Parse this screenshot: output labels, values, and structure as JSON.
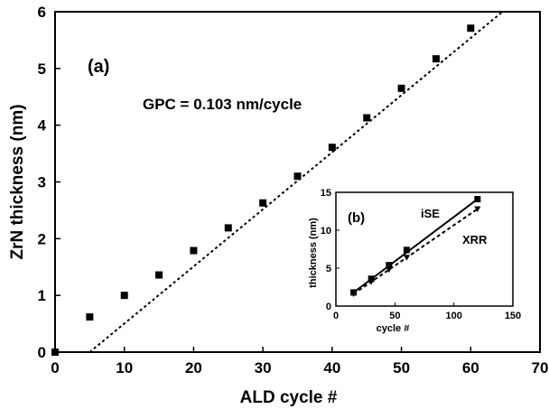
{
  "chart_data": [
    {
      "type": "scatter",
      "panel_label": "(a)",
      "xlabel": "ALD cycle #",
      "ylabel": "ZrN thickness (nm)",
      "xlim": [
        0,
        70
      ],
      "ylim": [
        0,
        6
      ],
      "xticks": [
        0,
        10,
        20,
        30,
        40,
        50,
        60,
        70
      ],
      "yticks": [
        0,
        1,
        2,
        3,
        4,
        5,
        6
      ],
      "annotation": "GPC = 0.103 nm/cycle",
      "grid": false,
      "series": [
        {
          "marker": "square",
          "x": [
            0,
            5,
            10,
            15,
            20,
            25,
            30,
            35,
            40,
            45,
            50,
            55,
            60
          ],
          "y": [
            0.0,
            0.62,
            1.0,
            1.36,
            1.79,
            2.19,
            2.63,
            3.1,
            3.61,
            4.13,
            4.65,
            5.17,
            5.71
          ]
        }
      ],
      "fit_line": {
        "style": "dotted",
        "x": [
          5,
          64.6
        ],
        "y": [
          0.0,
          6.0
        ]
      }
    },
    {
      "type": "line",
      "panel_label": "(b)",
      "xlabel": "cycle #",
      "ylabel": "thickness (nm)",
      "xlim": [
        0,
        150
      ],
      "ylim": [
        0,
        15
      ],
      "xticks": [
        0,
        50,
        100,
        150
      ],
      "yticks": [
        0,
        5,
        10,
        15
      ],
      "grid": false,
      "series": [
        {
          "name": "iSE",
          "marker": "square",
          "line": "solid",
          "x": [
            15,
            30,
            45,
            60,
            120
          ],
          "y": [
            1.8,
            3.6,
            5.4,
            7.4,
            14.1
          ]
        },
        {
          "name": "XRR",
          "marker": "triangle-down",
          "line": "dashed",
          "x": [
            15,
            30,
            45,
            60,
            120
          ],
          "y": [
            1.6,
            3.2,
            4.8,
            6.4,
            12.8
          ]
        }
      ]
    }
  ]
}
